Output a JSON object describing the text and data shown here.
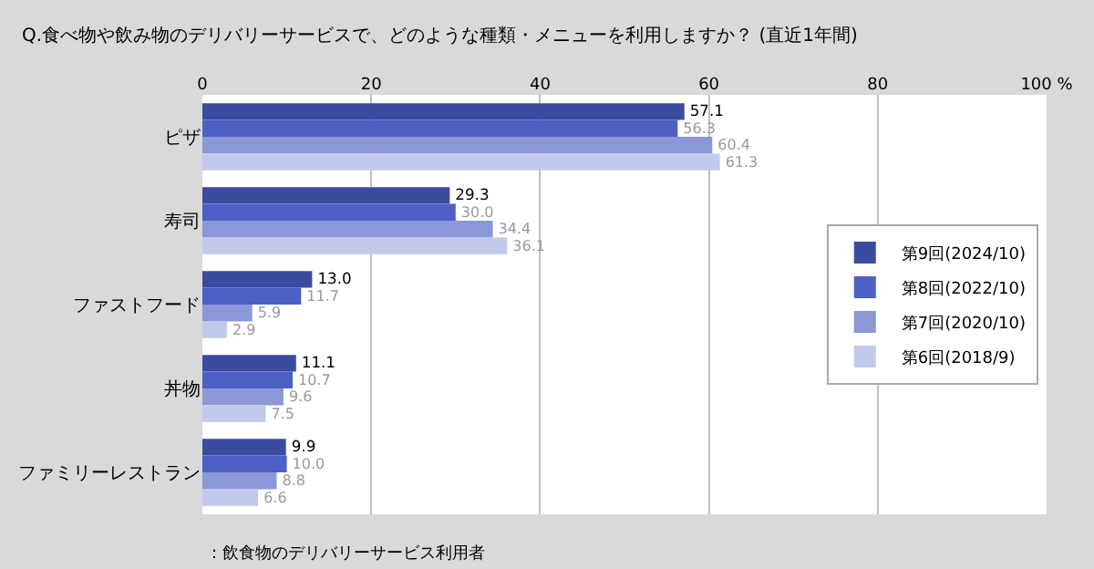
{
  "chart_data": {
    "type": "bar",
    "orientation": "horizontal",
    "title": "Q.食べ物や飲み物のデリバリーサービスで、どのような種類・メニューを利用しますか？ (直近1年間)",
    "categories": [
      "ピザ",
      "寿司",
      "ファストフード",
      "丼物",
      "ファミリーレストラン"
    ],
    "series": [
      {
        "name": "第9回(2024/10)",
        "color": "#3b4ba0",
        "values": [
          57.1,
          29.3,
          13.0,
          11.1,
          9.9
        ],
        "value_labels": [
          "57.1",
          "29.3",
          "13.0",
          "11.1",
          "9.9"
        ]
      },
      {
        "name": "第8回(2022/10)",
        "color": "#4d60c4",
        "values": [
          56.3,
          30.0,
          11.7,
          10.7,
          10.0
        ],
        "value_labels": [
          "56.3",
          "30.0",
          "11.7",
          "10.7",
          "10.0"
        ]
      },
      {
        "name": "第7回(2020/10)",
        "color": "#8b97d6",
        "values": [
          60.4,
          34.4,
          5.9,
          9.6,
          8.8
        ],
        "value_labels": [
          "60.4",
          "34.4",
          "5.9",
          "9.6",
          "8.8"
        ]
      },
      {
        "name": "第6回(2018/9)",
        "color": "#c3c9ea",
        "values": [
          61.3,
          36.1,
          2.9,
          7.5,
          6.6
        ],
        "value_labels": [
          "61.3",
          "36.1",
          "2.9",
          "7.5",
          "6.6"
        ]
      }
    ],
    "xlim": [
      0,
      100
    ],
    "xticks": [
      0,
      20,
      40,
      60,
      80,
      {
        "value": 100,
        "label": "100 %"
      }
    ],
    "grid": "x",
    "legend": "right",
    "annotations": [
      "：飲食物のデリバリーサービス利用者"
    ]
  }
}
